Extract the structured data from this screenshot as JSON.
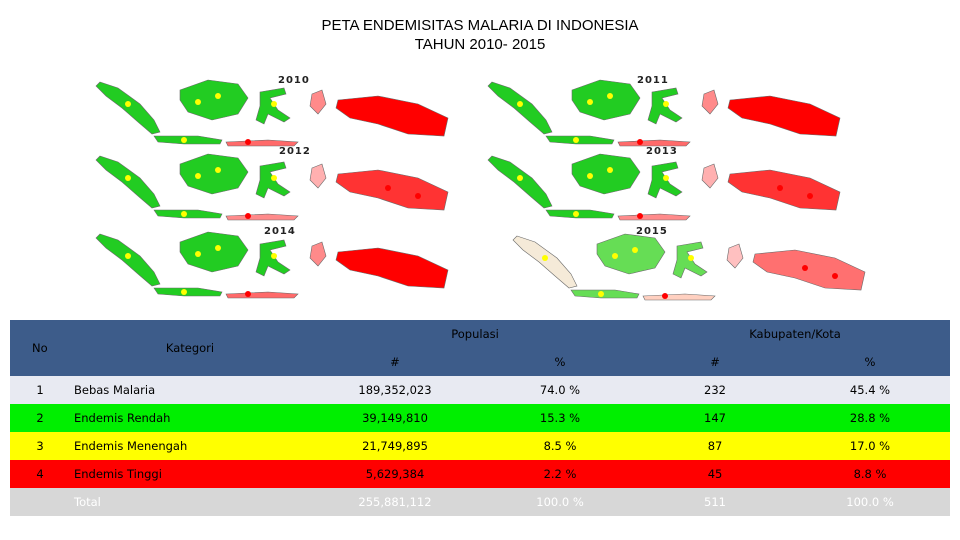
{
  "title": {
    "line1": "PETA ENDEMISITAS MALARIA DI INDONESIA",
    "line2": "TAHUN 2010- 2015"
  },
  "maps": [
    {
      "year": "2010"
    },
    {
      "year": "2011"
    },
    {
      "year": "2012"
    },
    {
      "year": "2013"
    },
    {
      "year": "2014"
    },
    {
      "year": "2015"
    }
  ],
  "legend_colors": {
    "bebas": "#e9e9e9",
    "rendah": "#22cc22",
    "menengah": "#ffff00",
    "tinggi": "#ff0000",
    "header": "#3d5c8a"
  },
  "table": {
    "headers": {
      "no": "No",
      "kategori": "Kategori",
      "populasi": "Populasi",
      "kabupaten": "Kabupaten/Kota",
      "pop_num": "#",
      "pop_pct": "%",
      "kab_num": "#",
      "kab_pct": "%"
    },
    "rows": [
      {
        "no": "1",
        "kategori": "Bebas Malaria",
        "pop_num": "189,352,023",
        "pop_pct": "74.0 %",
        "kab_num": "232",
        "kab_pct": "45.4 %"
      },
      {
        "no": "2",
        "kategori": "Endemis Rendah",
        "pop_num": "39,149,810",
        "pop_pct": "15.3 %",
        "kab_num": "147",
        "kab_pct": "28.8 %"
      },
      {
        "no": "3",
        "kategori": "Endemis Menengah",
        "pop_num": "21,749,895",
        "pop_pct": "8.5 %",
        "kab_num": "87",
        "kab_pct": "17.0 %"
      },
      {
        "no": "4",
        "kategori": "Endemis Tinggi",
        "pop_num": "5,629,384",
        "pop_pct": "2.2 %",
        "kab_num": "45",
        "kab_pct": "8.8 %"
      }
    ],
    "total": {
      "label": "Total",
      "pop_num": "255,881,112",
      "pop_pct": "100.0 %",
      "kab_num": "511",
      "kab_pct": "100.0 %"
    }
  }
}
